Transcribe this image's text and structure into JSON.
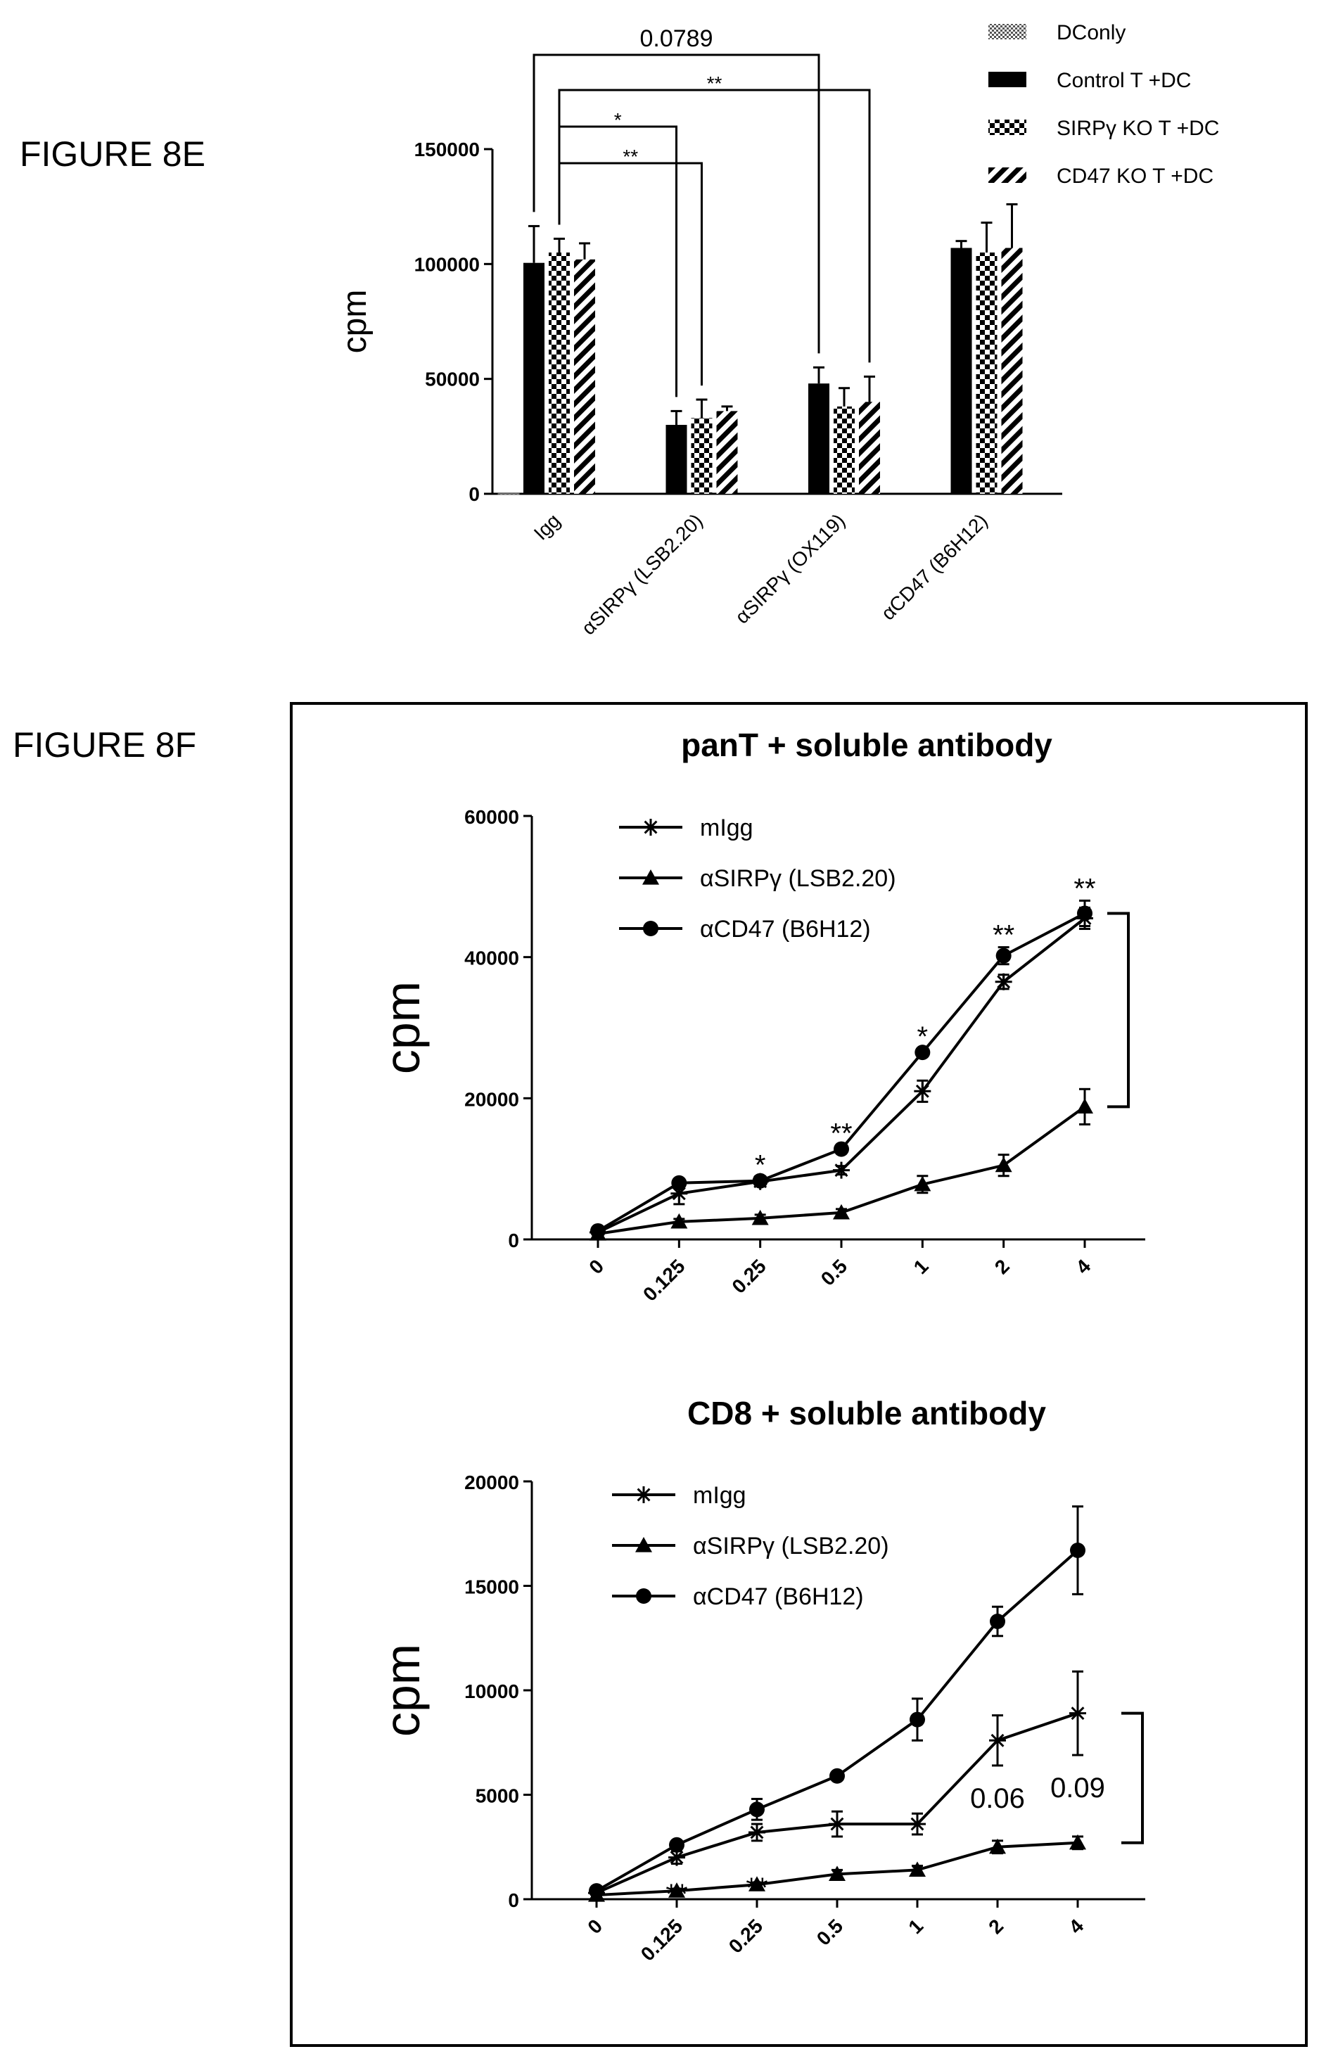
{
  "figure_labels": {
    "e": "FIGURE 8E",
    "f": "FIGURE 8F"
  },
  "chart_data": [
    {
      "id": "fig8e",
      "type": "bar",
      "ylabel": "cpm",
      "ylim": [
        0,
        150000
      ],
      "yticks": [
        0,
        50000,
        100000,
        150000
      ],
      "categories": [
        "Igg",
        "αSIRPγ (LSB2.20)",
        "αSIRPγ (OX119)",
        "αCD47 (B6H12)"
      ],
      "legend_position": "top-right",
      "series": [
        {
          "name": "DConly",
          "pattern": "dots",
          "values": [
            200,
            null,
            null,
            null
          ],
          "errors": [
            0,
            null,
            null,
            null
          ]
        },
        {
          "name": "Control T +DC",
          "pattern": "solid",
          "values": [
            100500,
            30000,
            48000,
            107000
          ],
          "errors": [
            16000,
            6000,
            7000,
            3000
          ]
        },
        {
          "name": "SIRPγ KO T +DC",
          "pattern": "checker",
          "values": [
            105000,
            33000,
            38000,
            105000
          ],
          "errors": [
            6000,
            8000,
            8000,
            13000
          ]
        },
        {
          "name": "CD47 KO T +DC",
          "pattern": "diagonal",
          "values": [
            102000,
            36000,
            40000,
            107000
          ],
          "errors": [
            7000,
            2000,
            11000,
            19000
          ]
        }
      ],
      "annotations": [
        {
          "text": "0.0789",
          "from": [
            0,
            1
          ],
          "to": [
            2,
            1
          ]
        },
        {
          "text": "**",
          "from": [
            0,
            2
          ],
          "to": [
            2,
            3
          ]
        },
        {
          "text": "*",
          "from": [
            0,
            2
          ],
          "to": [
            1,
            1
          ]
        },
        {
          "text": "**",
          "from": [
            0,
            2
          ],
          "to": [
            1,
            2
          ]
        }
      ]
    },
    {
      "id": "fig8f-pant",
      "type": "line",
      "title": "panT + soluble antibody",
      "ylabel": "cpm",
      "ylim": [
        0,
        60000
      ],
      "yticks": [
        0,
        20000,
        40000,
        60000
      ],
      "x": [
        "0",
        "0.125",
        "0.25",
        "0.5",
        "1",
        "2",
        "4"
      ],
      "legend_position": "top-left",
      "series": [
        {
          "name": "mIgg",
          "marker": "star",
          "values": [
            1000,
            6500,
            8200,
            9800,
            21000,
            36500,
            45500
          ],
          "errors": [
            500,
            1500,
            500,
            600,
            1500,
            1000,
            1500
          ]
        },
        {
          "name": "αSIRPγ (LSB2.20)",
          "marker": "triangle",
          "values": [
            800,
            2500,
            3000,
            3800,
            7800,
            10500,
            18800
          ],
          "errors": [
            300,
            400,
            500,
            500,
            1200,
            1500,
            2500
          ]
        },
        {
          "name": "αCD47 (B6H12)",
          "marker": "circle",
          "values": [
            1200,
            8000,
            8300,
            12800,
            26500,
            40200,
            46200
          ],
          "errors": [
            300,
            500,
            500,
            500,
            500,
            1200,
            1800
          ]
        }
      ],
      "significance": [
        {
          "x": "0.25",
          "text": "*"
        },
        {
          "x": "0.5",
          "text": "**"
        },
        {
          "x": "1",
          "text": "*"
        },
        {
          "x": "2",
          "text": "**"
        },
        {
          "x": "4",
          "text": "**"
        }
      ]
    },
    {
      "id": "fig8f-cd8",
      "type": "line",
      "title": "CD8 + soluble antibody",
      "ylabel": "cpm",
      "ylim": [
        0,
        20000
      ],
      "yticks": [
        0,
        5000,
        10000,
        15000,
        20000
      ],
      "x": [
        "0",
        "0.125",
        "0.25",
        "0.5",
        "1",
        "2",
        "4"
      ],
      "legend_position": "top-left",
      "series": [
        {
          "name": "mIgg",
          "marker": "star",
          "values": [
            300,
            2000,
            3200,
            3600,
            3600,
            7600,
            8900
          ],
          "errors": [
            100,
            300,
            400,
            600,
            500,
            1200,
            2000
          ]
        },
        {
          "name": "αSIRPγ (LSB2.20)",
          "marker": "triangle",
          "values": [
            200,
            400,
            700,
            1200,
            1400,
            2500,
            2700
          ],
          "errors": [
            100,
            100,
            100,
            200,
            200,
            300,
            300
          ]
        },
        {
          "name": "αCD47 (B6H12)",
          "marker": "circle",
          "values": [
            400,
            2600,
            4300,
            5900,
            8600,
            13300,
            16700
          ],
          "errors": [
            100,
            200,
            500,
            200,
            1000,
            700,
            2100
          ]
        }
      ],
      "significance": [
        {
          "x": "0.125",
          "text": "**"
        },
        {
          "x": "0.25",
          "text": "**"
        },
        {
          "x": "0.5",
          "text": "*"
        },
        {
          "x": "1",
          "text": "*"
        },
        {
          "x": "2",
          "text": "0.06"
        },
        {
          "x": "4",
          "text": "0.09"
        }
      ]
    }
  ]
}
